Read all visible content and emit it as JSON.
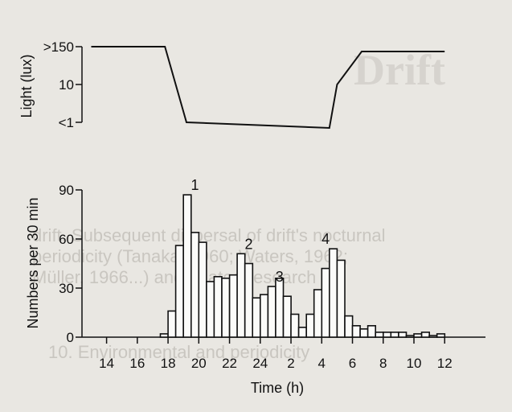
{
  "chart_data": [
    {
      "type": "line",
      "ylabel": "Light (lux)",
      "y_ticks": [
        ">150",
        "10",
        "<1"
      ],
      "points": [
        {
          "t": 13.0,
          "level": ">150"
        },
        {
          "t": 17.8,
          "level": ">150"
        },
        {
          "t": 19.2,
          "level": "<1"
        },
        {
          "t": 28.5,
          "level": "<1"
        },
        {
          "t": 29.0,
          "level": "10"
        },
        {
          "t": 30.6,
          "level": ">150"
        },
        {
          "t": 36.0,
          "level": ">150"
        }
      ]
    },
    {
      "type": "bar",
      "ylabel": "Numbers per 30 min",
      "xlabel": "Time (h)",
      "ylim": [
        0,
        90
      ],
      "y_ticks": [
        "0",
        "30",
        "60",
        "90"
      ],
      "x_ticks": [
        "14",
        "16",
        "18",
        "20",
        "22",
        "24",
        "2",
        "4",
        "6",
        "8",
        "10",
        "12"
      ],
      "bin_width_h": 0.5,
      "first_bin_start": 17.5,
      "values": [
        2,
        16,
        56,
        87,
        64,
        58,
        34,
        37,
        36,
        38,
        51,
        45,
        24,
        26,
        31,
        36,
        25,
        14,
        6,
        14,
        29,
        42,
        54,
        47,
        13,
        7,
        5,
        7,
        3,
        3,
        3,
        3,
        1,
        2,
        3,
        1,
        2
      ],
      "peak_labels": [
        {
          "label": "1",
          "t": 19.5,
          "value": 87
        },
        {
          "label": "2",
          "t": 23.0,
          "value": 51
        },
        {
          "label": "3",
          "t": 25.0,
          "value": 31
        },
        {
          "label": "4",
          "t": 28.0,
          "value": 54
        }
      ]
    }
  ],
  "background_text": {
    "l1": "drift. Subsequent dispersal of drift's nocturnal",
    "l2": "periodicity (Tanaka, 1960; Waters, 1962;",
    "l3": "Müller, 1966...) and related research",
    "l4": "10. Environmental and periodicity",
    "big": "Drift"
  }
}
